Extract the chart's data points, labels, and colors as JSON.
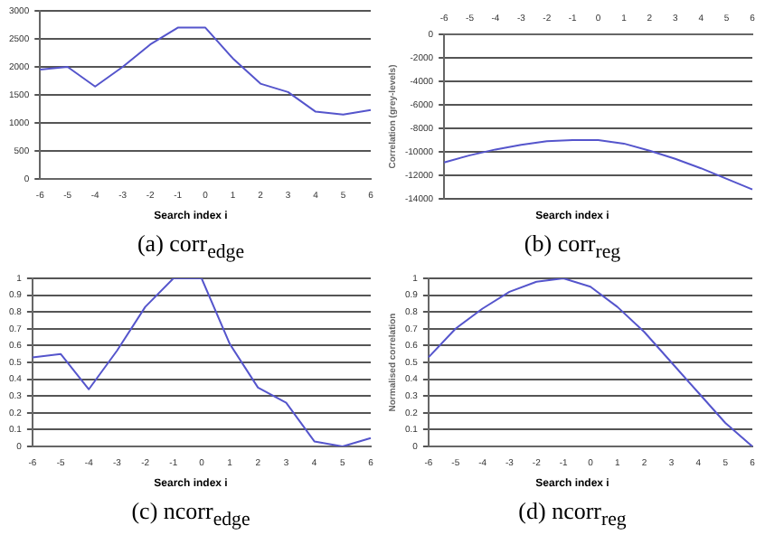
{
  "chart_data": [
    {
      "type": "line",
      "categories": [
        "-6",
        "-5",
        "-4",
        "-3",
        "-2",
        "-1",
        "0",
        "1",
        "2",
        "3",
        "4",
        "5",
        "6"
      ],
      "values": [
        1950,
        2000,
        1650,
        2000,
        2400,
        2700,
        2700,
        2150,
        1700,
        1550,
        1200,
        1150,
        1230
      ],
      "color": "#5555cc",
      "ylim": [
        0,
        3000
      ],
      "yticks": [
        0,
        500,
        1000,
        1500,
        2000,
        2500,
        3000
      ],
      "grid": "y",
      "marker": "none",
      "xlabel": "Search index i",
      "annotations": [
        "(a) corr$_{edge}$"
      ]
    },
    {
      "type": "line",
      "categories": [
        "-6",
        "-5",
        "-4",
        "-3",
        "-2",
        "-1",
        "0",
        "1",
        "2",
        "3",
        "4",
        "5",
        "6"
      ],
      "values": [
        -10900,
        -10300,
        -9800,
        -9400,
        -9100,
        -9000,
        -9000,
        -9300,
        -9900,
        -10600,
        -11400,
        -12300,
        -13200
      ],
      "color": "#5555cc",
      "ylim": [
        -14000,
        0
      ],
      "yticks": [
        -14000,
        -12000,
        -10000,
        -8000,
        -6000,
        -4000,
        -2000,
        0
      ],
      "grid": "y",
      "marker": "none",
      "xlabel": "Search index i",
      "ylabel": "Correlation (grey-levels)",
      "annotations": [
        "(b) corr$_{reg}$"
      ]
    },
    {
      "type": "line",
      "categories": [
        "-6",
        "-5",
        "-4",
        "-3",
        "-2",
        "-1",
        "0",
        "1",
        "2",
        "3",
        "4",
        "5",
        "6"
      ],
      "values": [
        0.53,
        0.55,
        0.34,
        0.57,
        0.83,
        1.0,
        1.0,
        0.61,
        0.35,
        0.26,
        0.03,
        0.0,
        0.05
      ],
      "color": "#5555cc",
      "ylim": [
        0,
        1
      ],
      "yticks": [
        0,
        0.1,
        0.2,
        0.3,
        0.4,
        0.5,
        0.6,
        0.7,
        0.8,
        0.9,
        1
      ],
      "grid": "y",
      "marker": "none",
      "xlabel": "Search index i",
      "annotations": [
        "(c) ncorr$_{edge}$"
      ]
    },
    {
      "type": "line",
      "categories": [
        "-6",
        "-5",
        "-4",
        "-3",
        "-2",
        "-1",
        "0",
        "1",
        "2",
        "3",
        "4",
        "5",
        "6"
      ],
      "values": [
        0.53,
        0.7,
        0.82,
        0.92,
        0.98,
        1.0,
        0.95,
        0.83,
        0.68,
        0.5,
        0.32,
        0.14,
        0.0
      ],
      "color": "#5555cc",
      "ylim": [
        0,
        1
      ],
      "yticks": [
        0,
        0.1,
        0.2,
        0.3,
        0.4,
        0.5,
        0.6,
        0.7,
        0.8,
        0.9,
        1
      ],
      "grid": "y",
      "marker": "none",
      "xlabel": "Search index i",
      "ylabel": "Normalised correlation",
      "annotations": [
        "(d) ncorr$_{reg}$"
      ]
    }
  ]
}
